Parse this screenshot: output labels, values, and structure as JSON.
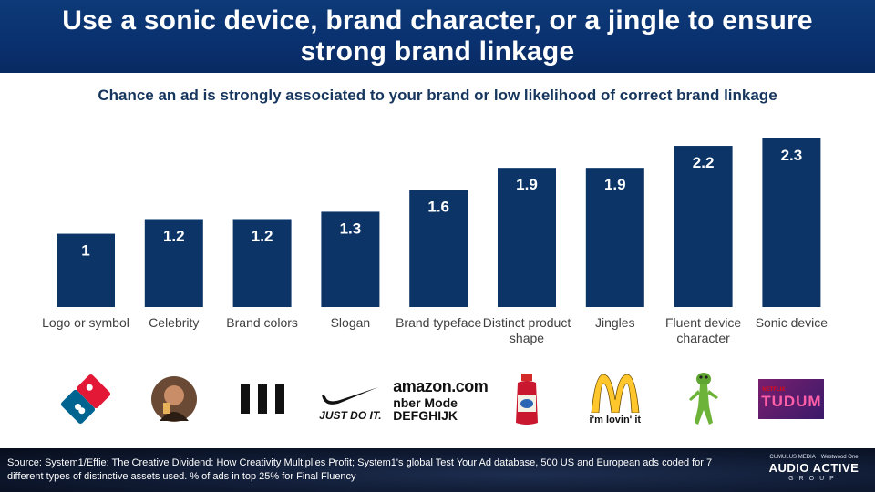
{
  "header": {
    "title": "Use a sonic device, brand character, or a jingle to ensure strong brand linkage"
  },
  "chart_data": {
    "type": "bar",
    "title": "Chance an ad is strongly associated to your brand or low likelihood of correct brand linkage",
    "categories": [
      "Logo or symbol",
      "Celebrity",
      "Brand colors",
      "Slogan",
      "Brand typeface",
      "Distinct product shape",
      "Jingles",
      "Fluent device character",
      "Sonic device"
    ],
    "values": [
      1,
      1.2,
      1.2,
      1.3,
      1.6,
      1.9,
      1.9,
      2.2,
      2.3
    ],
    "value_labels": [
      "1",
      "1.2",
      "1.2",
      "1.3",
      "1.6",
      "1.9",
      "1.9",
      "2.2",
      "2.3"
    ],
    "xlabel": "",
    "ylabel": "",
    "ylim": [
      0,
      2.3
    ],
    "grid": false,
    "bar_color": "#0d3466",
    "label_color": "#ffffff"
  },
  "logos": [
    {
      "icon": "dominos-logo-icon",
      "text": ""
    },
    {
      "icon": "celebrity-photo-icon",
      "text": ""
    },
    {
      "icon": "three-stripes-icon",
      "text": ""
    },
    {
      "icon": "nike-swoosh-icon",
      "text": "JUST DO IT."
    },
    {
      "icon": "amazon-typeface-icon",
      "text": "amazon.com",
      "line2": "nber Mode",
      "line3": "DEFGHIJK"
    },
    {
      "icon": "juice-bottle-icon",
      "text": ""
    },
    {
      "icon": "mcdonalds-arches-icon",
      "text": "i'm lovin' it"
    },
    {
      "icon": "gecko-character-icon",
      "text": ""
    },
    {
      "icon": "netflix-tudum-icon",
      "text": "TUDUM",
      "small": "NETFLIX"
    }
  ],
  "footer": {
    "source": "Source: System1/Effie: The Creative Dividend: How Creativity Multiplies Profit; System1's global Test Your Ad database, 500 US and European ads coded for 7 different types of distinctive assets used. % of ads in top 25% for Final Fluency",
    "brand_top_left": "CUMULUS MEDIA",
    "brand_top_right": "Westwood One",
    "brand_main": "AUDIO ACTIVE",
    "brand_sub": "GROUP"
  }
}
